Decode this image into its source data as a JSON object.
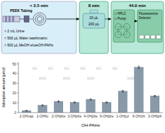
{
  "chart_data": {
    "type": "bar",
    "categories": [
      "2-OHnap",
      "2-OHflu",
      "2-OHphe",
      "3-OHphe",
      "4-OHphe",
      "6-OHphe",
      "1-OHpyr",
      "6-OHchr",
      "3-OHbph"
    ],
    "values": [
      2.0,
      7.5,
      11.5,
      10.5,
      13.5,
      10.5,
      22.0,
      46.5,
      17.0
    ],
    "errors": [
      0.3,
      0.5,
      0.6,
      0.5,
      0.7,
      0.5,
      0.8,
      1.2,
      0.7
    ],
    "color": "#8899aa",
    "xlabel": "OH-PAHs",
    "ylabel": "Adsorption amount (pmol)",
    "ylim": [
      0,
      52
    ],
    "yticks": [
      0,
      10,
      20,
      30,
      40,
      50
    ],
    "grid": false,
    "annotations": [
      "< 2.5 min",
      "8 min",
      "44.0 min",
      "PEEK Tubing",
      "> 2 mL Urine",
      "> 500 μL Water washmatrix",
      "> 500 μL MeOH eluteOH-PAHs",
      "20 μL",
      "200 μL",
      "□ HPLC",
      "□ Pump",
      "Fluorescence\nDetector",
      "○○",
      "○○",
      "○○",
      "○○",
      "○○",
      "○○",
      "○○○",
      "○○○",
      "○○○",
      "○○○"
    ]
  }
}
